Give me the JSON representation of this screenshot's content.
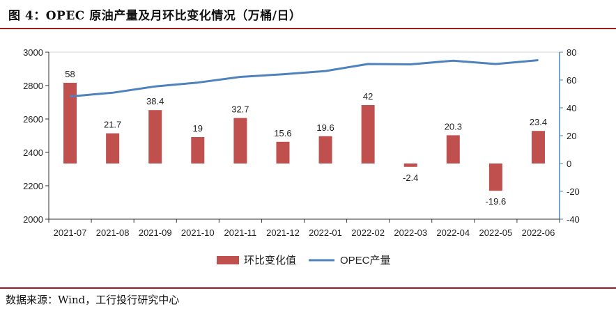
{
  "title": "图 4：OPEC 原油产量及月环比变化情况（万桶/日）",
  "source": "数据来源：Wind，工行投行研究中心",
  "colors": {
    "bar": "#c0504d",
    "line": "#4f81bd",
    "rule": "#9b1c1c",
    "axis": "#333333"
  },
  "chart_data": {
    "type": "bar+line",
    "categories": [
      "2021-07",
      "2021-08",
      "2021-09",
      "2021-10",
      "2021-11",
      "2021-12",
      "2022-01",
      "2022-02",
      "2022-03",
      "2022-04",
      "2022-05",
      "2022-06"
    ],
    "series": [
      {
        "name": "环比变化值",
        "type": "bar",
        "axis": "right",
        "values": [
          58,
          21.7,
          38.4,
          19,
          32.7,
          15.6,
          19.6,
          42,
          -2.4,
          20.3,
          -19.6,
          23.4
        ]
      },
      {
        "name": "OPEC产量",
        "type": "line",
        "axis": "left",
        "values": [
          2735,
          2757,
          2795,
          2818,
          2852,
          2868,
          2887,
          2929,
          2927,
          2949,
          2929,
          2952
        ]
      }
    ],
    "y_left": {
      "min": 2000,
      "max": 3000,
      "ticks": [
        2000,
        2200,
        2400,
        2600,
        2800,
        3000
      ]
    },
    "y_right": {
      "min": -40,
      "max": 80,
      "ticks": [
        -40,
        -20,
        0,
        20,
        40,
        60,
        80
      ]
    },
    "bar_labels": [
      "58",
      "21.7",
      "38.4",
      "19",
      "32.7",
      "15.6",
      "19.6",
      "42",
      "-2.4",
      "20.3",
      "-19.6",
      "23.4"
    ],
    "legend": {
      "position": "bottom"
    }
  }
}
